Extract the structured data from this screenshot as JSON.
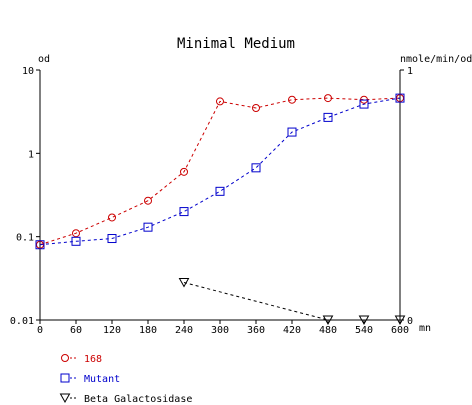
{
  "chart_data": {
    "type": "line",
    "title": "Minimal Medium",
    "ylabel_left": "od",
    "ylabel_right": "nmole/min/od",
    "xlabel": "mn",
    "x_ticks": [
      "0",
      "60",
      "120",
      "180",
      "240",
      "300",
      "360",
      "420",
      "480",
      "540",
      "600"
    ],
    "xlim": [
      0,
      600
    ],
    "y_left": {
      "scale": "log",
      "lim": [
        0.01,
        10
      ],
      "ticks": [
        "0.01",
        "0.1",
        "1",
        "10"
      ]
    },
    "y_right": {
      "scale": "linear",
      "lim": [
        0,
        1
      ],
      "ticks": [
        "0",
        "1"
      ]
    },
    "grid": false,
    "legend_position": "bottom-left",
    "series": [
      {
        "name": "168",
        "axis": "left",
        "color": "#cc0000",
        "marker": "circle",
        "x": [
          0,
          60,
          120,
          180,
          240,
          300,
          360,
          420,
          480,
          540,
          600
        ],
        "y": [
          0.08,
          0.11,
          0.17,
          0.27,
          0.6,
          4.2,
          3.5,
          4.4,
          4.6,
          4.4,
          4.6
        ]
      },
      {
        "name": "Mutant",
        "axis": "left",
        "color": "#0000cc",
        "marker": "square",
        "x": [
          0,
          60,
          120,
          180,
          240,
          300,
          360,
          420,
          480,
          540,
          600
        ],
        "y": [
          0.08,
          0.088,
          0.095,
          0.13,
          0.2,
          0.35,
          0.67,
          1.8,
          2.7,
          3.9,
          4.6
        ]
      },
      {
        "name": "Beta Galactosidase",
        "axis": "right",
        "color": "#000000",
        "marker": "triangle-down",
        "x": [
          240,
          480,
          540,
          600
        ],
        "y": [
          0.15,
          0.0,
          0.0,
          0.0
        ]
      }
    ]
  }
}
